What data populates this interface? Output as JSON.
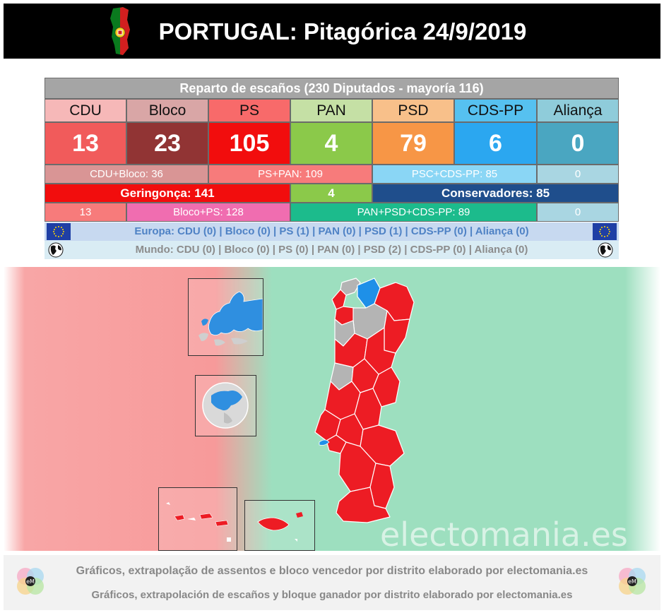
{
  "header": {
    "title": "PORTUGAL: Pitagórica 24/9/2019",
    "background": "#000000"
  },
  "table": {
    "title": "Reparto de escaños (230 Diputados - mayoría 116)",
    "parties": [
      {
        "name": "CDU",
        "seats": "13",
        "header_color": "#f6b8b8",
        "seat_color": "#f15b5b"
      },
      {
        "name": "Bloco",
        "seats": "23",
        "header_color": "#d9a6a6",
        "seat_color": "#913434"
      },
      {
        "name": "PS",
        "seats": "105",
        "header_color": "#f86a6a",
        "seat_color": "#f20d0d"
      },
      {
        "name": "PAN",
        "seats": "4",
        "header_color": "#c5e0a5",
        "seat_color": "#8bc94a"
      },
      {
        "name": "PSD",
        "seats": "79",
        "header_color": "#f8c08a",
        "seat_color": "#f79646"
      },
      {
        "name": "CDS-PP",
        "seats": "6",
        "header_color": "#56c1f0",
        "seat_color": "#2ba7f0"
      },
      {
        "name": "Aliança",
        "seats": "0",
        "header_color": "#8fccda",
        "seat_color": "#4aa6c1"
      }
    ],
    "sum_row1": {
      "cdu_bloco": "CDU+Bloco: 36",
      "ps_pan": "PS+PAN: 109",
      "psc_cds": "PSC+CDS-PP: 85",
      "alianca": "0"
    },
    "sum_row2": {
      "geringonca": "Geringonça: 141",
      "pan": "4",
      "conservadores": "Conservadores: 85"
    },
    "sum_row3": {
      "cdu": "13",
      "bloco_ps": "Bloco+PS: 128",
      "pan_psd_cds": "PAN+PSD+CDS-PP: 89",
      "alianca": "0"
    }
  },
  "strip": {
    "europa": "Europa: CDU (0) | Bloco (0) | PS (1) | PAN (0) | PSD (1) | CDS-PP (0) | Aliança (0)",
    "mundo": "Mundo: CDU (0) | Bloco (0) | PS (0) | PAN (0) | PSD (2) | CDS-PP (0) | Aliança (0)",
    "europe_icon": "eu-flag-icon",
    "world_icon": "globe-icon"
  },
  "map": {
    "watermark": "electomania.es",
    "colors": {
      "ps": "#ed1c24",
      "cds": "#1e90e8",
      "none": "#b4b4b4"
    }
  },
  "footer": {
    "line_pt": "Gráficos, extrapolação de assentos e bloco vencedor por distrito elaborado por electomania.es",
    "line_es": "Gráficos, extrapolación de escaños y bloque ganador por distrito elaborado por electomania.es"
  }
}
